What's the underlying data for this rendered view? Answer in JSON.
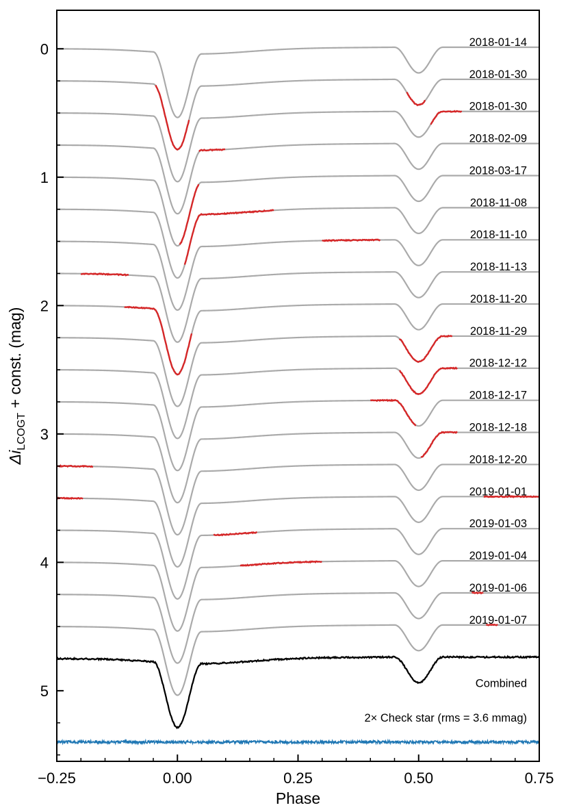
{
  "chart_data": {
    "type": "line",
    "title": "",
    "xlabel": "Phase",
    "ylabel_prefix": "Δi",
    "ylabel_sub": "LCOGT",
    "ylabel_suffix": " + const. (mag)",
    "xlim": [
      -0.25,
      0.75
    ],
    "ylim": [
      5.55,
      -0.3
    ],
    "y_inverted": true,
    "xticks": [
      -0.25,
      0.0,
      0.25,
      0.5,
      0.75
    ],
    "xtick_labels": [
      "−0.25",
      "0.00",
      "0.25",
      "0.50",
      "0.75"
    ],
    "yticks": [
      0,
      1,
      2,
      3,
      4,
      5
    ],
    "ytick_labels": [
      "0",
      "1",
      "2",
      "3",
      "4",
      "5"
    ],
    "model": {
      "primary_eclipse": {
        "phase": 0.0,
        "depth": 0.5
      },
      "secondary_eclipse": {
        "phase": 0.5,
        "depth": 0.2
      },
      "curve_offset_step": 0.25
    },
    "colors": {
      "model": "#aaaaaa",
      "observed": "#d62728",
      "combined": "#000000",
      "check_star": "#1f77b4"
    },
    "series": [
      {
        "name": "2018-01-14",
        "offset": 0.0,
        "observed_ranges": []
      },
      {
        "name": "2018-01-30",
        "offset": 0.25,
        "observed_ranges": [
          [
            -0.045,
            0.025
          ],
          [
            0.475,
            0.515
          ]
        ]
      },
      {
        "name": "2018-01-30",
        "offset": 0.5,
        "observed_ranges": [
          [
            0.525,
            0.59
          ]
        ]
      },
      {
        "name": "2018-02-09",
        "offset": 0.75,
        "observed_ranges": [
          [
            0.045,
            0.1
          ]
        ]
      },
      {
        "name": "2018-03-17",
        "offset": 1.0,
        "observed_ranges": [
          [
            0.005,
            0.045
          ]
        ]
      },
      {
        "name": "2018-11-08",
        "offset": 1.25,
        "observed_ranges": [
          [
            0.015,
            0.2
          ]
        ]
      },
      {
        "name": "2018-11-10",
        "offset": 1.5,
        "observed_ranges": [
          [
            0.3,
            0.42
          ]
        ]
      },
      {
        "name": "2018-11-13",
        "offset": 1.75,
        "observed_ranges": [
          [
            -0.2,
            -0.1
          ]
        ]
      },
      {
        "name": "2018-11-20",
        "offset": 2.0,
        "observed_ranges": [
          [
            -0.11,
            0.03
          ]
        ]
      },
      {
        "name": "2018-11-29",
        "offset": 2.25,
        "observed_ranges": [
          [
            0.46,
            0.57
          ]
        ]
      },
      {
        "name": "2018-12-12",
        "offset": 2.5,
        "observed_ranges": [
          [
            0.46,
            0.58
          ]
        ]
      },
      {
        "name": "2018-12-17",
        "offset": 2.75,
        "observed_ranges": [
          [
            0.4,
            0.495
          ]
        ]
      },
      {
        "name": "2018-12-18",
        "offset": 3.0,
        "observed_ranges": [
          [
            0.505,
            0.58
          ]
        ]
      },
      {
        "name": "2018-12-20",
        "offset": 3.25,
        "observed_ranges": [
          [
            -0.25,
            -0.175
          ]
        ]
      },
      {
        "name": "2019-01-01",
        "offset": 3.5,
        "observed_ranges": [
          [
            -0.25,
            -0.195
          ],
          [
            0.635,
            0.75
          ]
        ]
      },
      {
        "name": "2019-01-03",
        "offset": 3.75,
        "observed_ranges": [
          [
            0.075,
            0.165
          ]
        ]
      },
      {
        "name": "2019-01-04",
        "offset": 4.0,
        "observed_ranges": [
          [
            0.13,
            0.3
          ]
        ]
      },
      {
        "name": "2019-01-06",
        "offset": 4.25,
        "observed_ranges": [
          [
            0.61,
            0.635
          ]
        ]
      },
      {
        "name": "2019-01-07",
        "offset": 4.5,
        "observed_ranges": [
          [
            0.64,
            0.665
          ]
        ]
      }
    ],
    "combined": {
      "name": "Combined",
      "offset": 4.75
    },
    "check_star": {
      "label": "2× Check star (rms = 3.6 mmag)",
      "level": 5.4,
      "rms_mmag": 3.6
    }
  }
}
